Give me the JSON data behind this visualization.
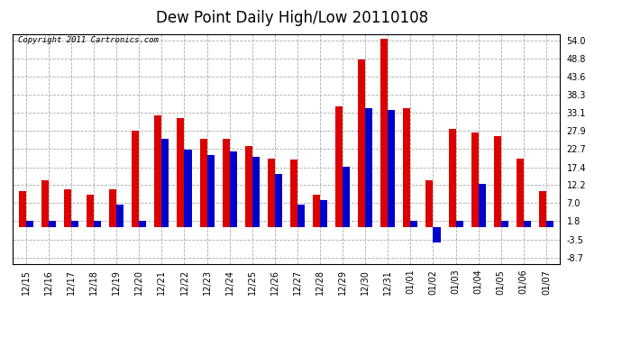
{
  "title": "Dew Point Daily High/Low 20110108",
  "copyright": "Copyright 2011 Cartronics.com",
  "categories": [
    "12/15",
    "12/16",
    "12/17",
    "12/18",
    "12/19",
    "12/20",
    "12/21",
    "12/22",
    "12/23",
    "12/24",
    "12/25",
    "12/26",
    "12/27",
    "12/28",
    "12/29",
    "12/30",
    "12/31",
    "01/01",
    "01/02",
    "01/03",
    "01/04",
    "01/05",
    "01/06",
    "01/07"
  ],
  "high_values": [
    10.5,
    13.5,
    11.0,
    9.5,
    11.0,
    28.0,
    32.5,
    31.5,
    25.5,
    25.5,
    23.5,
    20.0,
    19.5,
    9.5,
    35.0,
    48.5,
    54.5,
    34.5,
    13.5,
    28.5,
    27.5,
    26.5,
    20.0,
    10.5
  ],
  "low_values": [
    1.8,
    1.8,
    1.8,
    1.8,
    6.5,
    1.8,
    25.5,
    22.5,
    21.0,
    22.0,
    20.5,
    15.5,
    6.5,
    8.0,
    17.5,
    34.5,
    34.0,
    1.8,
    -4.5,
    1.8,
    12.5,
    1.8,
    1.8,
    1.8
  ],
  "high_color": "#dd0000",
  "low_color": "#0000cc",
  "background_color": "#ffffff",
  "plot_background": "#ffffff",
  "grid_color": "#aaaaaa",
  "ylabel_values": [
    -8.7,
    -3.5,
    1.8,
    7.0,
    12.2,
    17.4,
    22.7,
    27.9,
    33.1,
    38.3,
    43.6,
    48.8,
    54.0
  ],
  "ylim": [
    -10.5,
    56.0
  ],
  "title_fontsize": 12,
  "tick_fontsize": 7,
  "copyright_fontsize": 6.5
}
